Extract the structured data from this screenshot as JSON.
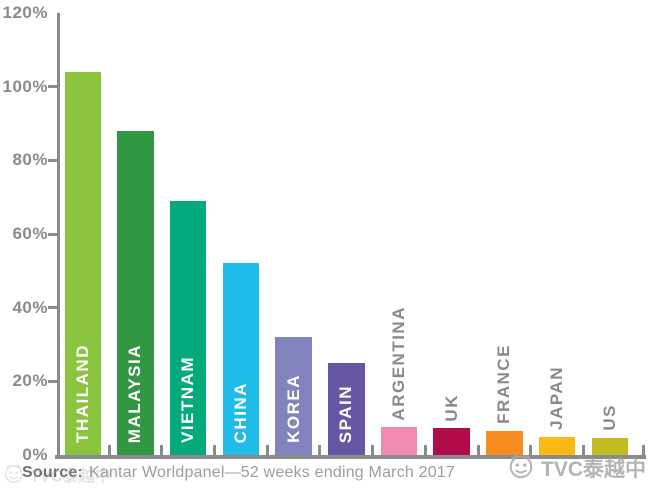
{
  "chart_data": {
    "type": "bar",
    "categories": [
      "THAILAND",
      "MALAYSIA",
      "VIETNAM",
      "CHINA",
      "KOREA",
      "SPAIN",
      "ARGENTINA",
      "UK",
      "FRANCE",
      "JAPAN",
      "US"
    ],
    "values": [
      104,
      88,
      69,
      52,
      32,
      25,
      7.5,
      7.2,
      6.6,
      4.8,
      4.6
    ],
    "bar_colors": [
      "#8BC540",
      "#319743",
      "#04AA7D",
      "#1FBCEA",
      "#8083BE",
      "#6656A5",
      "#F28BB1",
      "#B10C49",
      "#F68B1F",
      "#FBB816",
      "#C2BB20"
    ],
    "label_placement": [
      "inside",
      "inside",
      "inside",
      "inside",
      "inside",
      "inside",
      "above",
      "above",
      "above",
      "above",
      "above"
    ],
    "title": "",
    "xlabel": "",
    "ylabel": "",
    "ylim": [
      0,
      120
    ],
    "ytick_values": [
      120,
      100,
      80,
      60,
      40,
      20,
      0
    ],
    "ytick_labels": [
      "120%",
      "100%",
      "80%",
      "60%",
      "40%",
      "20%",
      "0%"
    ],
    "grid": false,
    "legend": "none"
  },
  "colors": {
    "axis": "#8A8B8D",
    "ytick_label": "#8A8B8D",
    "label_inside": "#FFFFFF",
    "label_above": "#8A8A8C",
    "source_label": "#6E6F71",
    "source_text": "#9C9DA0",
    "watermark": "#A8A8AA"
  },
  "source": {
    "label": "Source:",
    "text": "Kantar Worldpanel—52 weeks ending March 2017"
  },
  "watermark": {
    "text": "TVC泰越中",
    "logo_icon": "sketch-face-circle-icon"
  }
}
